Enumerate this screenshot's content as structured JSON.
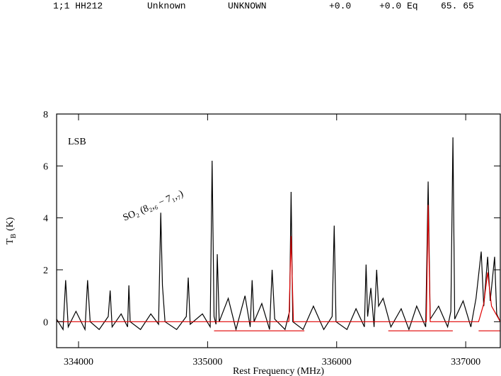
{
  "header": {
    "fields": [
      "1;1 HH212",
      "Unknown",
      "UNKNOWN",
      "+0.0",
      "+0.0 Eq",
      "65. 65"
    ]
  },
  "chart_data": {
    "type": "line",
    "xlabel": "Rest Frequency (MHz)",
    "ylabel": [
      "T",
      "B",
      "(K)"
    ],
    "annotations": [
      "LSB",
      "SO₂ (8₂,₆ − 7₁,₇)"
    ],
    "annotation_color": "#1a1adf",
    "xlim": [
      333830,
      337268
    ],
    "ylim": [
      -1,
      8
    ],
    "xticks": [
      334000,
      335000,
      336000,
      337000
    ],
    "yticks": [
      0,
      2,
      4,
      6,
      8
    ],
    "series": [
      {
        "color": "#000000",
        "x": [
          333830,
          333880,
          333900,
          333920,
          333980,
          334050,
          334070,
          334090,
          334160,
          334230,
          334245,
          334260,
          334330,
          334380,
          334390,
          334400,
          334480,
          334560,
          334620,
          334637,
          334650,
          334670,
          334760,
          334835,
          334850,
          334865,
          334960,
          335020,
          335035,
          335050,
          335065,
          335075,
          335090,
          335160,
          335220,
          335290,
          335330,
          335345,
          335360,
          335420,
          335480,
          335500,
          335520,
          335600,
          335635,
          335647,
          335660,
          335740,
          335820,
          335900,
          335965,
          335981,
          335995,
          336080,
          336150,
          336215,
          336228,
          336240,
          336265,
          336290,
          336310,
          336325,
          336360,
          336420,
          336500,
          336560,
          336620,
          336690,
          336709,
          336725,
          336790,
          336860,
          336885,
          336901,
          336915,
          336980,
          337040,
          337080,
          337120,
          337140,
          337170,
          337190,
          337224,
          337240,
          337268
        ],
        "values": [
          0.1,
          -0.3,
          1.6,
          -0.2,
          0.4,
          -0.3,
          1.6,
          0.0,
          -0.3,
          0.2,
          1.2,
          -0.2,
          0.3,
          -0.2,
          1.4,
          0.0,
          -0.3,
          0.3,
          -0.1,
          4.2,
          1.4,
          0.0,
          -0.3,
          0.2,
          1.7,
          -0.1,
          0.3,
          -0.2,
          6.2,
          0.2,
          -0.1,
          2.6,
          0.0,
          0.9,
          -0.3,
          1.0,
          -0.2,
          1.6,
          0.0,
          0.7,
          -0.3,
          2.0,
          0.1,
          -0.3,
          0.4,
          5.0,
          0.0,
          -0.3,
          0.6,
          -0.3,
          0.2,
          3.7,
          0.0,
          -0.3,
          0.5,
          -0.2,
          2.2,
          0.2,
          1.3,
          -0.2,
          2.0,
          0.6,
          0.9,
          -0.2,
          0.5,
          -0.3,
          0.6,
          -0.2,
          5.4,
          0.1,
          0.6,
          -0.2,
          0.4,
          7.1,
          0.1,
          0.8,
          -0.2,
          0.9,
          2.7,
          0.6,
          2.5,
          0.8,
          2.5,
          0.3,
          0.0
        ]
      },
      {
        "color": "#e00000",
        "x": [
          333830,
          335630,
          335647,
          335665,
          336695,
          336709,
          336725,
          337100,
          337140,
          337170,
          337200,
          337268
        ],
        "values": [
          0,
          0,
          3.3,
          0,
          0,
          4.5,
          0,
          0,
          0.7,
          1.9,
          0.6,
          0
        ]
      },
      {
        "color": "#e00000",
        "x": [
          335050,
          335750,
          335760,
          336400,
          336900,
          336910,
          337100,
          337268
        ],
        "values": [
          -0.35,
          -0.35,
          null,
          -0.35,
          -0.35,
          null,
          -0.35,
          -0.35
        ]
      }
    ]
  }
}
